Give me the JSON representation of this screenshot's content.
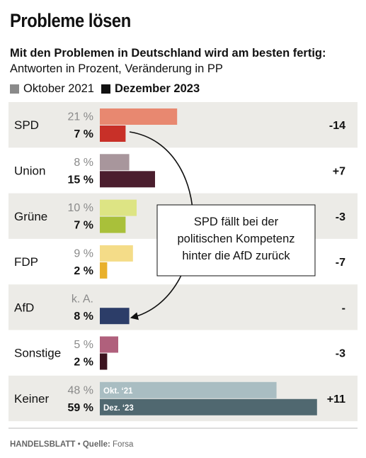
{
  "header": {
    "title": "Probleme lösen",
    "subtitle_bold": "Mit den Problemen in Deutschland wird am besten fertig:",
    "subtitle_rest": " Antworten in Prozent, Veränderung in PP"
  },
  "legend": [
    {
      "label": "Oktober 2021",
      "color": "#8a8a8a"
    },
    {
      "label": "Dezember 2023",
      "color": "#111111"
    }
  ],
  "footer": {
    "source_bold": "HANDELSBLATT",
    "source_separator": " • ",
    "source_label": "Quelle:",
    "source_text": " Forsa"
  },
  "annotation": "SPD fällt bei der politischen Kompetenz hinter die AfD zurück",
  "chart_data": {
    "type": "bar",
    "categories": [
      "SPD",
      "Union",
      "Grüne",
      "FDP",
      "AfD",
      "Sonstige",
      "Keiner"
    ],
    "series": [
      {
        "name": "Oktober 2021",
        "values": [
          21,
          8,
          10,
          9,
          null,
          5,
          48
        ],
        "labels": [
          "21 %",
          "8 %",
          "10 %",
          "9 %",
          "k. A.",
          "5 %",
          "48 %"
        ]
      },
      {
        "name": "Dezember 2023",
        "values": [
          7,
          15,
          7,
          2,
          8,
          2,
          59
        ],
        "labels": [
          "7 %",
          "15 %",
          "7 %",
          "2 %",
          "8 %",
          "2 %",
          "59 %"
        ]
      }
    ],
    "changes": [
      "-14",
      "+7",
      "-3",
      "-7",
      "-",
      "-3",
      "+11"
    ],
    "colors_2021": [
      "#e88870",
      "#a8969c",
      "#dde484",
      "#f4dc88",
      "",
      "#b0607c",
      "#a9bdc2"
    ],
    "colors_2023": [
      "#c83028",
      "#4b1e2e",
      "#a9c03a",
      "#e9b02a",
      "#2c3d68",
      "#3c1420",
      "#506870"
    ],
    "row_shading": [
      true,
      false,
      true,
      false,
      true,
      false,
      true
    ],
    "inbar_labels": {
      "row": "Keiner",
      "2021": "Okt. ‘21",
      "2023": "Dez. ‘23"
    },
    "xlim": [
      0,
      60
    ]
  }
}
